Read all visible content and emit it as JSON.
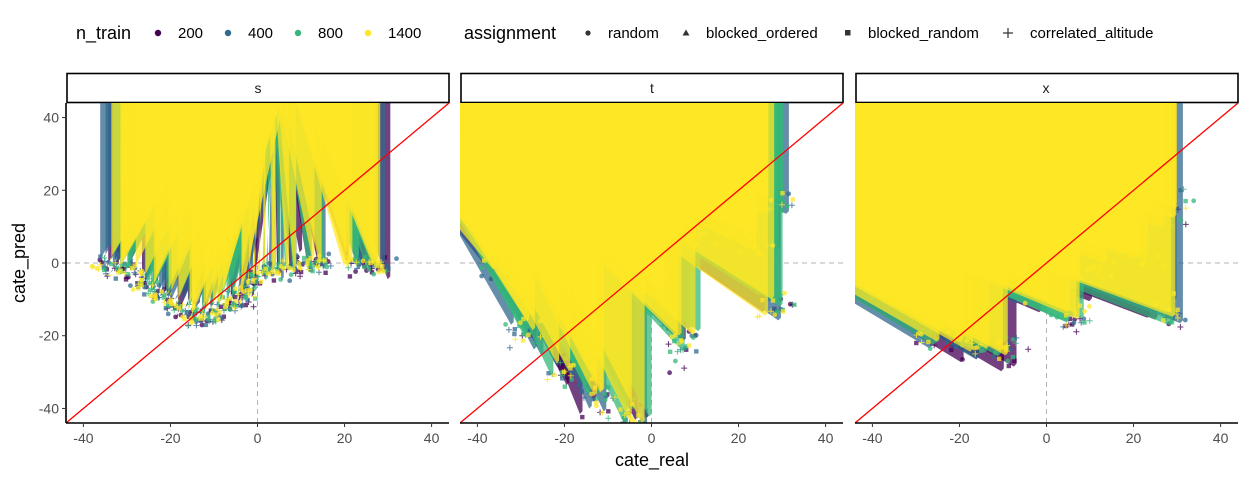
{
  "chart_data": {
    "type": "scatter",
    "xlabel": "cate_real",
    "ylabel": "cate_pred",
    "xlim": [
      -44,
      44
    ],
    "ylim": [
      -44,
      44
    ],
    "x_ticks": [
      -40,
      -20,
      0,
      20,
      40
    ],
    "y_ticks": [
      -40,
      -20,
      0,
      20,
      40
    ],
    "x_tick_labels": [
      "-40",
      "-20",
      "0",
      "20",
      "40"
    ],
    "y_tick_labels": [
      "-40",
      "-20",
      "0",
      "20",
      "40"
    ],
    "grid": false,
    "reference_lines": {
      "identity_color": "#ff0000",
      "zero_lines_style": "dashed grey"
    },
    "legend": {
      "position": "top",
      "color_title": "n_train",
      "color_entries": [
        {
          "label": "200",
          "color": "#440154"
        },
        {
          "label": "400",
          "color": "#31688e"
        },
        {
          "label": "800",
          "color": "#35b779"
        },
        {
          "label": "1400",
          "color": "#fde725"
        }
      ],
      "shape_title": "assignment",
      "shape_entries": [
        {
          "label": "random",
          "shape": "circle"
        },
        {
          "label": "blocked_ordered",
          "shape": "triangle"
        },
        {
          "label": "blocked_random",
          "shape": "square"
        },
        {
          "label": "correlated_altitude",
          "shape": "plus"
        }
      ]
    },
    "facets": [
      {
        "label": "s",
        "cluster_points": [
          {
            "x": -34,
            "y": -1
          },
          {
            "x": -30,
            "y": -2
          },
          {
            "x": -26,
            "y": -6
          },
          {
            "x": -22,
            "y": -9
          },
          {
            "x": -18,
            "y": -12
          },
          {
            "x": -14,
            "y": -15
          },
          {
            "x": -10,
            "y": -14
          },
          {
            "x": -6,
            "y": -11
          },
          {
            "x": -3,
            "y": -8
          },
          {
            "x": 0,
            "y": -4
          },
          {
            "x": 4,
            "y": -2
          },
          {
            "x": 9,
            "y": -1
          },
          {
            "x": 14,
            "y": 0
          },
          {
            "x": 23,
            "y": 0
          },
          {
            "x": 28,
            "y": -1
          },
          {
            "x": -12,
            "y": 1
          }
        ]
      },
      {
        "label": "t",
        "cluster_points": [
          {
            "x": -35,
            "y": 0
          },
          {
            "x": -28,
            "y": -18
          },
          {
            "x": -24,
            "y": 10
          },
          {
            "x": -20,
            "y": -30
          },
          {
            "x": -16,
            "y": 14
          },
          {
            "x": -12,
            "y": -36
          },
          {
            "x": -8,
            "y": 15
          },
          {
            "x": -4,
            "y": -42
          },
          {
            "x": 0,
            "y": -6
          },
          {
            "x": 4,
            "y": 12
          },
          {
            "x": 8,
            "y": -22
          },
          {
            "x": 12,
            "y": 8
          },
          {
            "x": 21,
            "y": 10
          },
          {
            "x": 25,
            "y": 5
          },
          {
            "x": 28,
            "y": 17
          },
          {
            "x": 28,
            "y": -11
          }
        ]
      },
      {
        "label": "x",
        "cluster_points": [
          {
            "x": -35,
            "y": -8
          },
          {
            "x": -30,
            "y": 11
          },
          {
            "x": -26,
            "y": -18
          },
          {
            "x": -22,
            "y": 5
          },
          {
            "x": -18,
            "y": -22
          },
          {
            "x": -14,
            "y": 14
          },
          {
            "x": -10,
            "y": -24
          },
          {
            "x": -6,
            "y": 16
          },
          {
            "x": -2,
            "y": -8
          },
          {
            "x": 2,
            "y": 12
          },
          {
            "x": 6,
            "y": -14
          },
          {
            "x": 10,
            "y": -2
          },
          {
            "x": 14,
            "y": 0
          },
          {
            "x": 23,
            "y": 2
          },
          {
            "x": 28,
            "y": 14
          },
          {
            "x": 28,
            "y": -13
          }
        ]
      }
    ]
  }
}
